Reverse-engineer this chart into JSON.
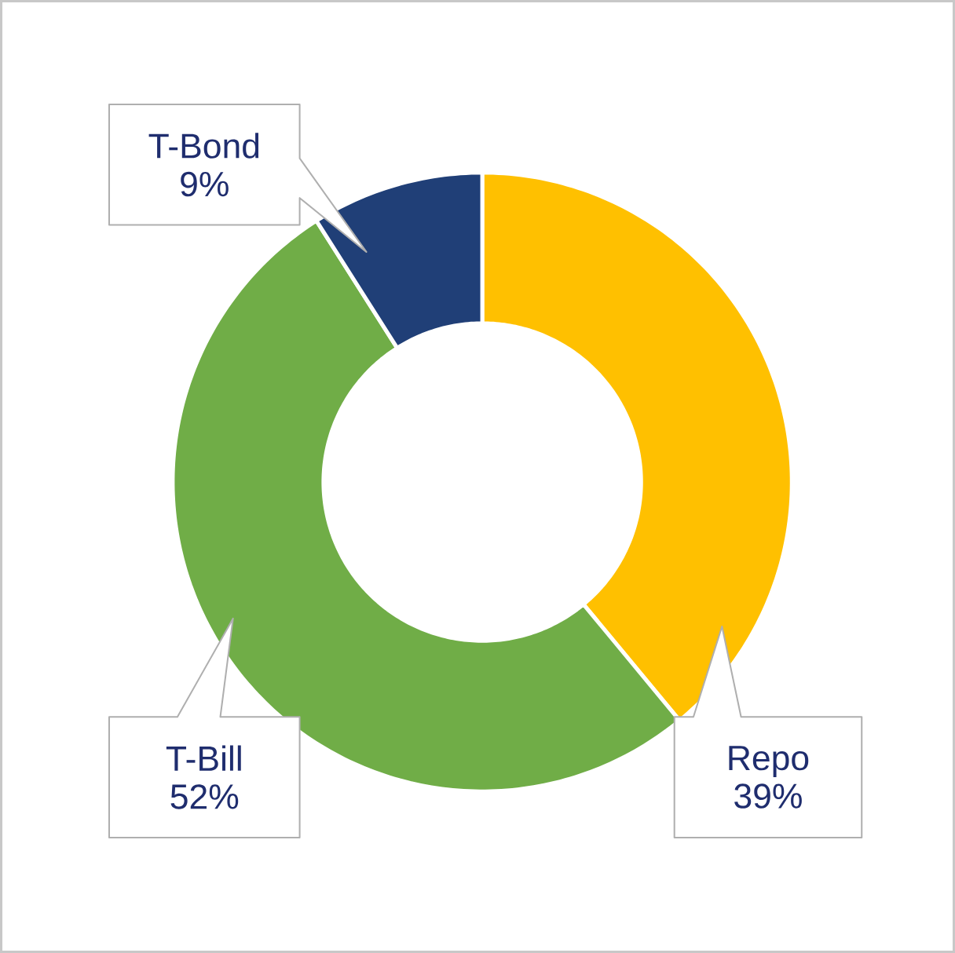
{
  "chart_data": {
    "type": "donut",
    "categories": [
      "Repo",
      "T-Bill",
      "T-Bond"
    ],
    "values": [
      39,
      52,
      9
    ],
    "colors": [
      "#ffc000",
      "#70ad47",
      "#203f77"
    ],
    "value_labels": [
      "39%",
      "52%",
      "9%"
    ]
  }
}
